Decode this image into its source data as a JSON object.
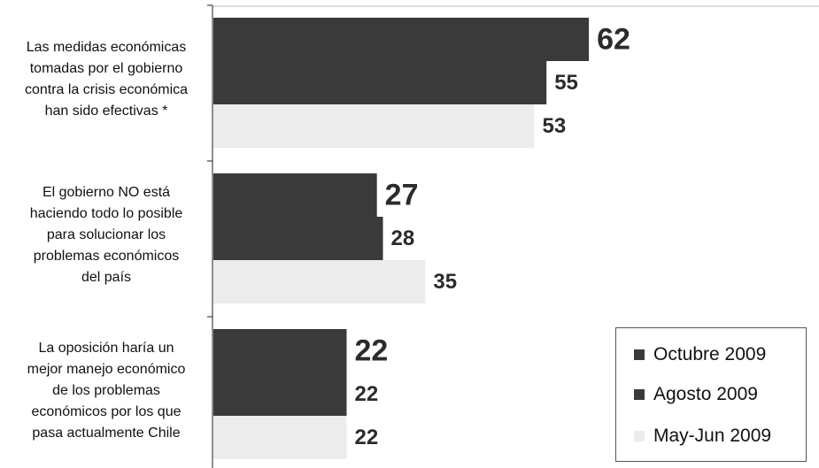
{
  "chart_data": {
    "type": "bar",
    "orientation": "horizontal",
    "categories": [
      "Las medidas económicas tomadas por el gobierno contra la crisis económica han sido efectivas *",
      "El gobierno NO está haciendo todo lo posible para solucionar los problemas económicos del país",
      "La oposición haría un mejor manejo económico de los problemas económicos por los que pasa actualmente Chile"
    ],
    "category_lines": [
      [
        "Las medidas económicas",
        "tomadas por el gobierno",
        "contra la crisis económica",
        "han sido efectivas *"
      ],
      [
        "El gobierno NO está",
        "haciendo todo lo posible",
        "para solucionar los",
        "problemas económicos",
        "del país"
      ],
      [
        "La oposición haría un",
        "mejor manejo económico",
        "de los problemas",
        "económicos por los que",
        "pasa actualmente Chile"
      ]
    ],
    "series": [
      {
        "name": "Octubre 2009",
        "values": [
          62,
          27,
          22
        ],
        "color": "#3a3a3a"
      },
      {
        "name": "Agosto 2009",
        "values": [
          55,
          28,
          22
        ],
        "color": "#3a3a3a"
      },
      {
        "name": "May-Jun 2009",
        "values": [
          53,
          35,
          22
        ],
        "color": "#ececec"
      }
    ],
    "xlim": [
      0,
      100
    ],
    "grid": false,
    "legend": "bottom-right",
    "title": "",
    "xlabel": "",
    "ylabel": ""
  }
}
